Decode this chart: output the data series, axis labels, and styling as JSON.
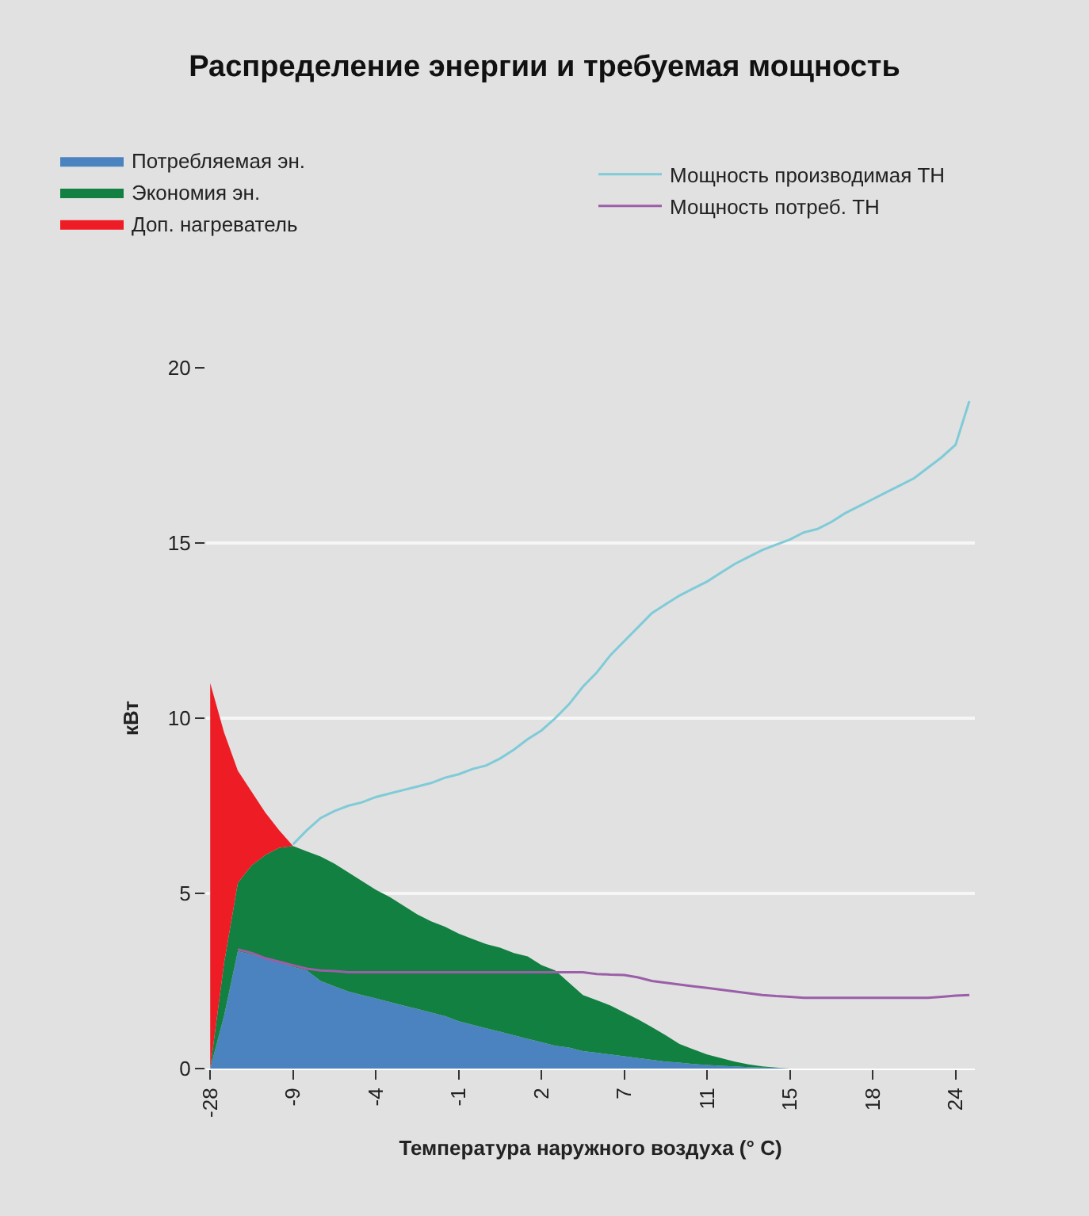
{
  "chart_data": {
    "type": "area",
    "stacked": true,
    "title": "Распределение энергии и требуемая мощность",
    "xlabel": "Температура наружного воздуха (° C)",
    "ylabel": "кВт",
    "categories": [
      "-28",
      null,
      null,
      null,
      null,
      null,
      "-9",
      null,
      null,
      null,
      null,
      null,
      "-4",
      null,
      null,
      null,
      null,
      null,
      "-1",
      null,
      null,
      null,
      null,
      null,
      "2",
      null,
      null,
      null,
      null,
      null,
      "7",
      null,
      null,
      null,
      null,
      null,
      "11",
      null,
      null,
      null,
      null,
      null,
      "15",
      null,
      null,
      null,
      null,
      null,
      "18",
      null,
      null,
      null,
      null,
      null,
      "24",
      null
    ],
    "ylim": [
      0,
      20
    ],
    "yticks": [
      0,
      5,
      10,
      15,
      20
    ],
    "grid": "y",
    "legend": "top",
    "series": [
      {
        "name": "Потребляемая эн.",
        "color": "#4a83bf",
        "values": [
          0,
          1.5,
          3.35,
          3.25,
          3.15,
          3.05,
          2.9,
          2.8,
          2.5,
          2.35,
          2.2,
          2.1,
          2.0,
          1.9,
          1.8,
          1.7,
          1.6,
          1.5,
          1.35,
          1.25,
          1.15,
          1.05,
          0.95,
          0.85,
          0.75,
          0.65,
          0.6,
          0.5,
          0.45,
          0.4,
          0.35,
          0.3,
          0.25,
          0.2,
          0.17,
          0.13,
          0.1,
          0.08,
          0.06,
          0.04,
          0.03,
          0.02,
          0,
          0,
          0,
          0,
          0,
          0,
          0,
          0,
          0,
          0,
          0,
          0,
          0,
          0
        ]
      },
      {
        "name": "Экономия эн.",
        "color": "#118040",
        "values": [
          0,
          1.5,
          1.95,
          2.55,
          2.95,
          3.25,
          3.45,
          3.4,
          3.55,
          3.5,
          3.4,
          3.25,
          3.1,
          3.0,
          2.85,
          2.7,
          2.6,
          2.55,
          2.5,
          2.45,
          2.4,
          2.4,
          2.35,
          2.35,
          2.2,
          2.15,
          1.85,
          1.6,
          1.5,
          1.4,
          1.25,
          1.1,
          0.93,
          0.75,
          0.53,
          0.42,
          0.3,
          0.22,
          0.14,
          0.08,
          0.03,
          0.01,
          0,
          0,
          0,
          0,
          0,
          0,
          0,
          0,
          0,
          0,
          0,
          0,
          0,
          0
        ]
      },
      {
        "name": "Доп. нагреватель",
        "color": "#ee1c25",
        "values": [
          11.0,
          6.6,
          3.2,
          2.1,
          1.2,
          0.5,
          0,
          0,
          0,
          0,
          0,
          0,
          0,
          0,
          0,
          0,
          0,
          0,
          0,
          0,
          0,
          0,
          0,
          0,
          0,
          0,
          0,
          0,
          0,
          0,
          0,
          0,
          0,
          0,
          0,
          0,
          0,
          0,
          0,
          0,
          0,
          0,
          0,
          0,
          0,
          0,
          0,
          0,
          0,
          0,
          0,
          0,
          0,
          0,
          0,
          0
        ]
      },
      {
        "name": "Мощность производимая ТН",
        "type": "line",
        "color": "#7fcbd8",
        "values": [
          null,
          null,
          null,
          null,
          null,
          null,
          6.4,
          6.8,
          7.15,
          7.35,
          7.5,
          7.6,
          7.75,
          7.85,
          7.95,
          8.05,
          8.15,
          8.3,
          8.4,
          8.55,
          8.65,
          8.85,
          9.1,
          9.4,
          9.65,
          10.0,
          10.4,
          10.9,
          11.3,
          11.8,
          12.2,
          12.6,
          13.0,
          13.25,
          13.5,
          13.7,
          13.9,
          14.15,
          14.4,
          14.6,
          14.8,
          14.95,
          15.1,
          15.3,
          15.4,
          15.6,
          15.85,
          16.05,
          16.25,
          16.45,
          16.65,
          16.85,
          17.15,
          17.45,
          17.8,
          19.05
        ]
      },
      {
        "name": "Мощность потреб. ТН",
        "type": "line",
        "color": "#9b5ea8",
        "values": [
          null,
          null,
          3.4,
          3.3,
          3.15,
          3.05,
          2.95,
          2.85,
          2.8,
          2.78,
          2.75,
          2.75,
          2.75,
          2.75,
          2.75,
          2.75,
          2.75,
          2.75,
          2.75,
          2.75,
          2.75,
          2.75,
          2.75,
          2.75,
          2.75,
          2.75,
          2.75,
          2.75,
          2.7,
          2.68,
          2.67,
          2.6,
          2.5,
          2.45,
          2.4,
          2.35,
          2.3,
          2.25,
          2.2,
          2.15,
          2.1,
          2.07,
          2.05,
          2.02,
          2.02,
          2.02,
          2.02,
          2.02,
          2.02,
          2.02,
          2.02,
          2.02,
          2.02,
          2.05,
          2.08,
          2.1
        ]
      }
    ]
  }
}
